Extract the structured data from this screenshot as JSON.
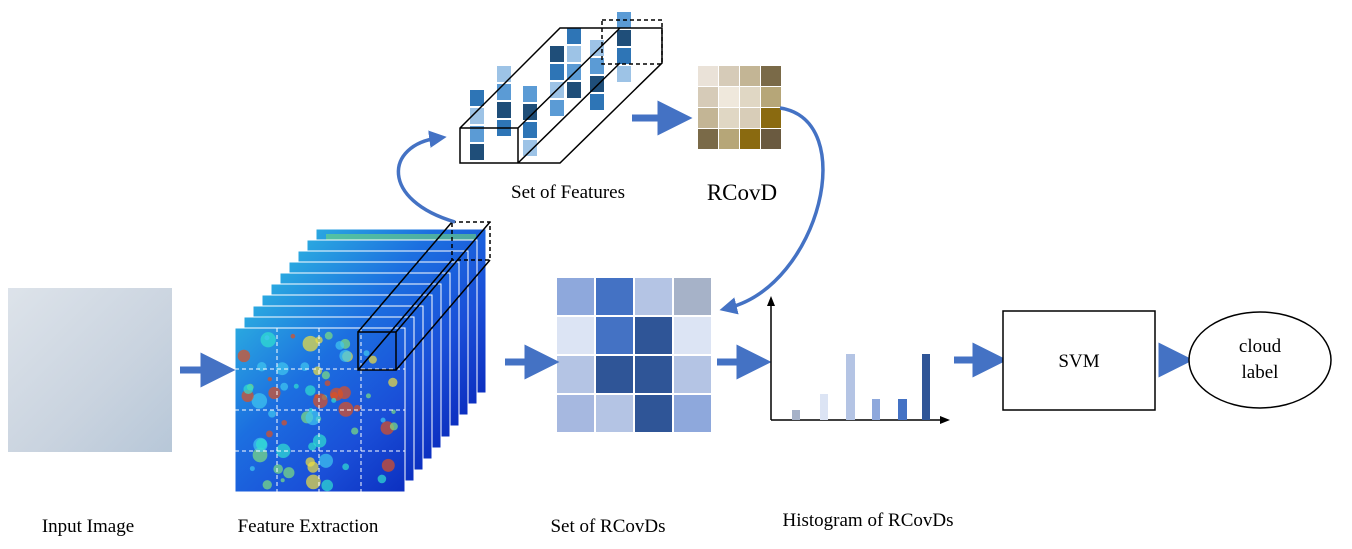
{
  "labels": {
    "input_image": "Input Image",
    "feature_extraction": "Feature Extraction",
    "set_of_rcovds": "Set of RCovDs",
    "histogram": "Histogram of RCovDs",
    "set_of_features": "Set of Features",
    "rcovd": "RCovD"
  },
  "svm": "SVM",
  "output": {
    "lines": [
      "cloud",
      "label"
    ]
  }
}
